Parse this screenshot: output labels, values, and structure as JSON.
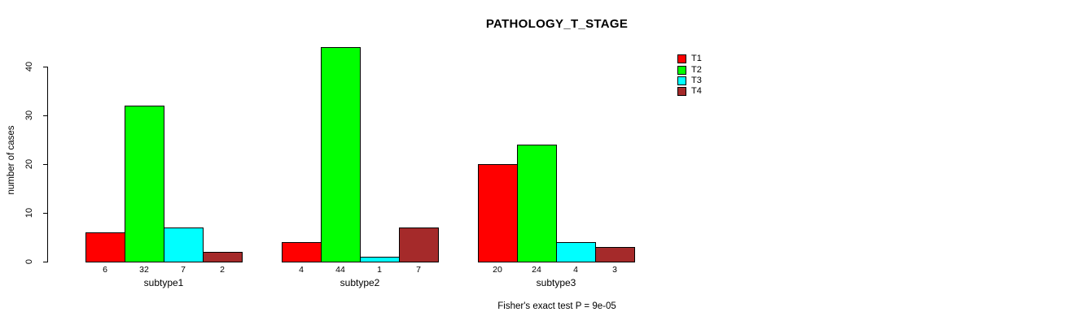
{
  "chart_data": {
    "type": "bar",
    "title": "PATHOLOGY_T_STAGE",
    "xlabel": "",
    "ylabel": "number of cases",
    "categories": [
      "subtype1",
      "subtype2",
      "subtype3"
    ],
    "series": [
      {
        "name": "T1",
        "color": "#ff0000",
        "values": [
          6,
          4,
          20
        ]
      },
      {
        "name": "T2",
        "color": "#00ff00",
        "values": [
          32,
          44,
          24
        ]
      },
      {
        "name": "T3",
        "color": "#00ffff",
        "values": [
          7,
          1,
          4
        ]
      },
      {
        "name": "T4",
        "color": "#a52a2a",
        "values": [
          2,
          7,
          3
        ]
      }
    ],
    "yticks": [
      0,
      10,
      20,
      30,
      40
    ],
    "ylim": [
      0,
      44
    ],
    "grid": false,
    "legend_position": "top-right",
    "bar_value_labels": true,
    "annotation": "Fisher's exact test P = 9e-05"
  }
}
